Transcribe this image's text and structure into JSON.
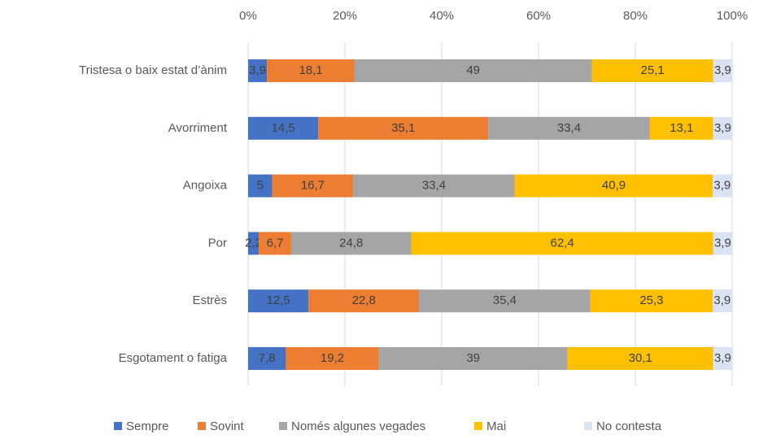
{
  "chart_data": {
    "type": "stacked_barh",
    "categories": [
      "Tristesa o baix estat d’ànim",
      "Avorriment",
      "Angoixa",
      "Por",
      "Estrès",
      "Esgotament o fatiga"
    ],
    "series": [
      {
        "name": "Sempre",
        "color": "#4472c4",
        "values": [
          3.9,
          14.5,
          5,
          2.2,
          12.5,
          7.8
        ],
        "value_labels": [
          "3,9",
          "14,5",
          "5",
          "2,2",
          "12,5",
          "7,8"
        ]
      },
      {
        "name": "Sovint",
        "color": "#ed7d31",
        "values": [
          18.1,
          35.1,
          16.7,
          6.7,
          22.8,
          19.2
        ],
        "value_labels": [
          "18,1",
          "35,1",
          "16,7",
          "6,7",
          "22,8",
          "19,2"
        ]
      },
      {
        "name": "Només algunes vegades",
        "color": "#a5a5a5",
        "values": [
          49,
          33.4,
          33.4,
          24.8,
          35.4,
          39
        ],
        "value_labels": [
          "49",
          "33,4",
          "33,4",
          "24,8",
          "35,4",
          "39"
        ]
      },
      {
        "name": "Mai",
        "color": "#ffc000",
        "values": [
          25.1,
          13.1,
          40.9,
          62.4,
          25.3,
          30.1
        ],
        "value_labels": [
          "25,1",
          "13,1",
          "40,9",
          "62,4",
          "25,3",
          "30,1"
        ]
      },
      {
        "name": "No contesta",
        "color": "#dae3f3",
        "values": [
          3.9,
          3.9,
          3.9,
          3.9,
          3.9,
          3.9
        ],
        "value_labels": [
          "3,9",
          "3,9",
          "3,9",
          "3,9",
          "3,9",
          "3,9"
        ]
      }
    ],
    "xlim": [
      0,
      100
    ],
    "xticks": [
      {
        "value": 0,
        "label": "0%"
      },
      {
        "value": 20,
        "label": "20%"
      },
      {
        "value": 40,
        "label": "40%"
      },
      {
        "value": 60,
        "label": "60%"
      },
      {
        "value": 80,
        "label": "80%"
      },
      {
        "value": 100,
        "label": "100%"
      }
    ],
    "grid": true,
    "legend": "bottom"
  }
}
